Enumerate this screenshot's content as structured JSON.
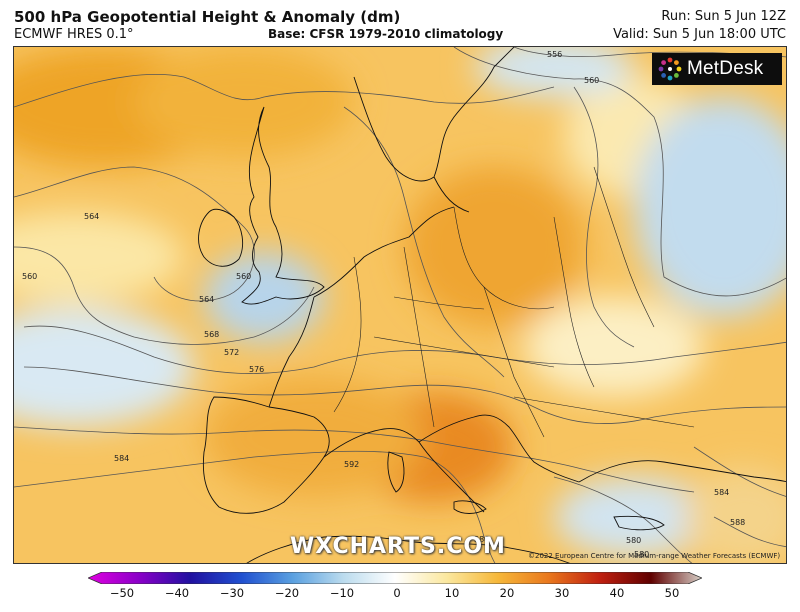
{
  "header": {
    "title": "500 hPa Geopotential Height & Anomaly (dm)",
    "model": "ECMWF HRES 0.1°",
    "base": "Base: CFSR 1979-2010 climatology",
    "run": "Run: Sun 5 Jun 12Z",
    "valid": "Valid: Sun 5 Jun 18:00 UTC"
  },
  "brand": {
    "metdesk_logo": "MetDesk",
    "watermark": "WXCHARTS.COM",
    "copyright": "©2022 European Centre for Medium-range Weather Forecasts (ECMWF)"
  },
  "contour_labels": [
    "556",
    "560",
    "564",
    "560",
    "560",
    "564",
    "568",
    "572",
    "576",
    "580",
    "584",
    "588",
    "592",
    "584",
    "580",
    "588"
  ],
  "colorbar": {
    "ticks": [
      "−50",
      "−40",
      "−30",
      "−20",
      "−10",
      "0",
      "10",
      "20",
      "30",
      "40",
      "50"
    ],
    "min": -50,
    "max": 50,
    "colors": [
      "#e000e0",
      "#8a00c8",
      "#2010a0",
      "#2050d0",
      "#5aa0e0",
      "#bcdcee",
      "#ffffff",
      "#fbe8a0",
      "#f6b83a",
      "#e9781e",
      "#c02010",
      "#600000",
      "#d8d0c8"
    ]
  }
}
